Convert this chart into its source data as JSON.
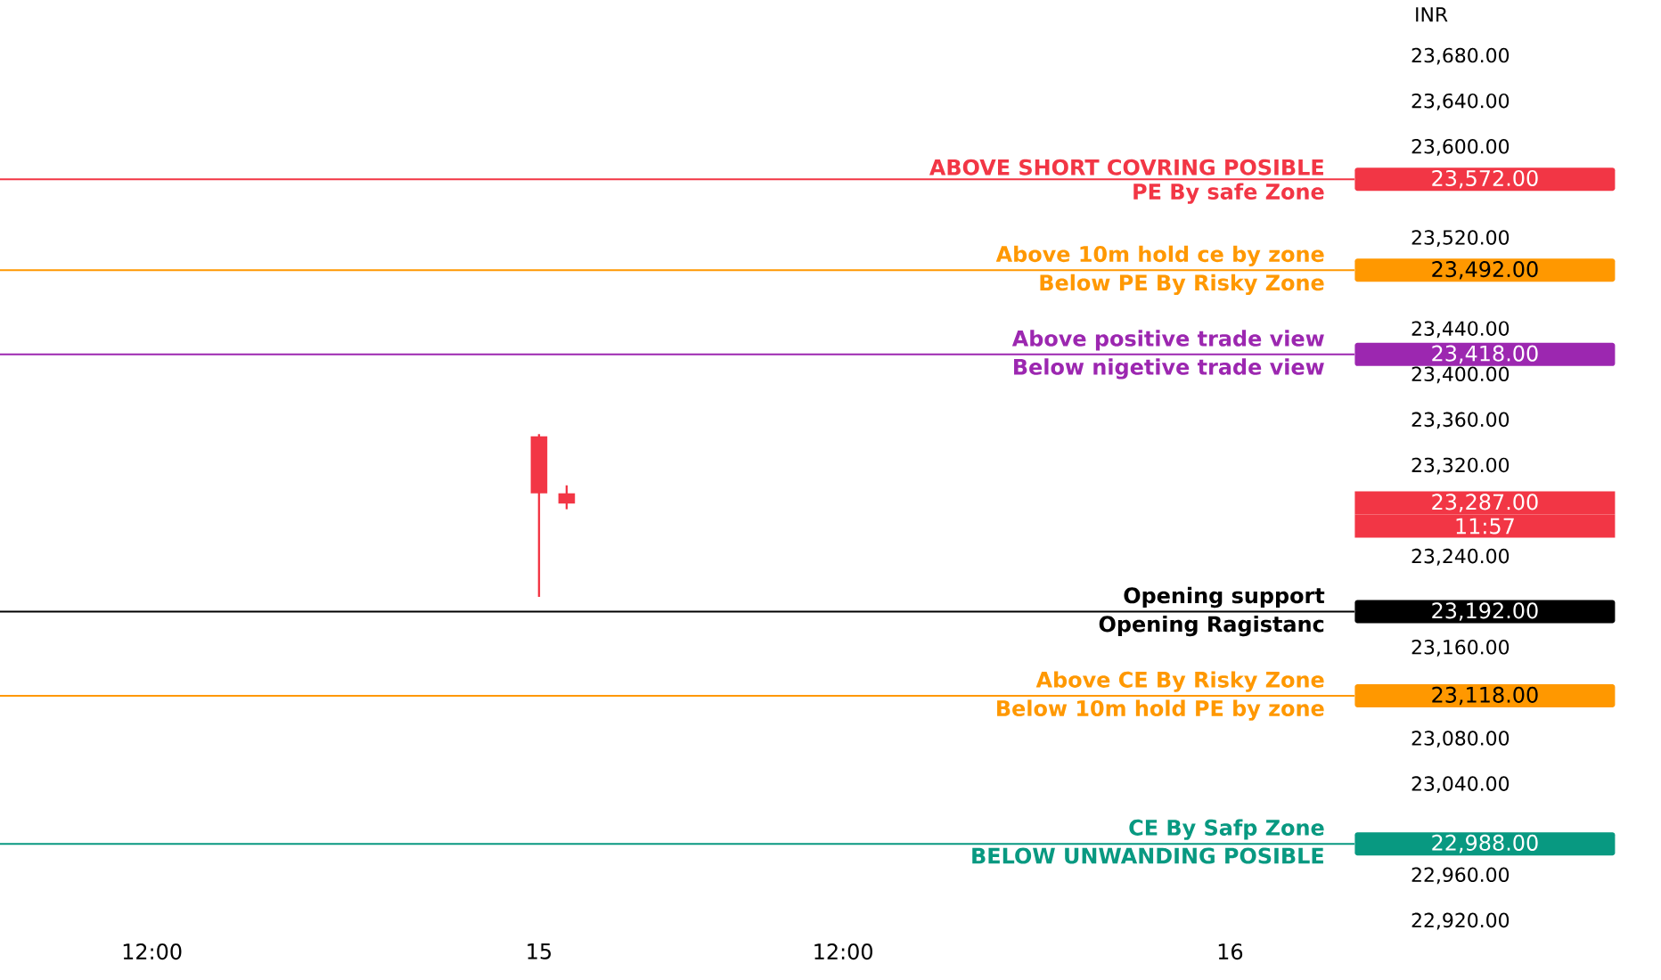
{
  "chart_data": {
    "type": "candlestick",
    "ylabel": "INR",
    "categories": [
      null,
      null,
      null,
      null,
      null,
      "12:00",
      null,
      null,
      null,
      null,
      null,
      null,
      null,
      null,
      null,
      null,
      null,
      null,
      null,
      "15",
      null,
      null,
      null,
      null,
      null,
      null,
      null,
      null,
      null,
      null,
      "12:00",
      null,
      null,
      null,
      null,
      null,
      null,
      null,
      null,
      null,
      null,
      null,
      null,
      null,
      "16",
      null,
      null,
      null,
      null
    ],
    "ohlc": [
      null,
      null,
      null,
      null,
      null,
      null,
      null,
      null,
      null,
      null,
      null,
      null,
      null,
      null,
      null,
      null,
      null,
      null,
      null,
      [
        23346,
        23348,
        23205,
        23296
      ],
      [
        23296,
        23303,
        23282,
        23287
      ],
      null,
      null,
      null,
      null,
      null,
      null,
      null,
      null,
      null,
      null,
      null,
      null,
      null,
      null,
      null,
      null,
      null,
      null,
      null,
      null,
      null,
      null,
      null,
      null,
      null,
      null,
      null,
      null
    ],
    "color": "#f23645",
    "ylim": [
      22920,
      23680
    ],
    "yticks": [
      {
        "value": 22920,
        "label": "22,920.00"
      },
      {
        "value": 22960,
        "label": "22,960.00"
      },
      {
        "value": 23040,
        "label": "23,040.00"
      },
      {
        "value": 23080,
        "label": "23,080.00"
      },
      {
        "value": 23160,
        "label": "23,160.00"
      },
      {
        "value": 23240,
        "label": "23,240.00"
      },
      {
        "value": 23320,
        "label": "23,320.00"
      },
      {
        "value": 23360,
        "label": "23,360.00"
      },
      {
        "value": 23400,
        "label": "23,400.00"
      },
      {
        "value": 23440,
        "label": "23,440.00"
      },
      {
        "value": 23520,
        "label": "23,520.00"
      },
      {
        "value": 23600,
        "label": "23,600.00"
      },
      {
        "value": 23640,
        "label": "23,640.00"
      },
      {
        "value": 23680,
        "label": "23,680.00"
      }
    ],
    "grid": false,
    "ref_lines": [
      {
        "axis": "y",
        "value": 23572,
        "label": "ABOVE SHORT COVRING POSIBLE",
        "color": "#f23645"
      },
      {
        "axis": "y",
        "value": 23492,
        "label": "Above 10m hold ce by zone",
        "color": "#ff9800"
      },
      {
        "axis": "y",
        "value": 23418,
        "label": "Above positive trade view",
        "color": "#9c27b0"
      },
      {
        "axis": "y",
        "value": 23192,
        "label": "Opening support",
        "color": "#000000"
      },
      {
        "axis": "y",
        "value": 23118,
        "label": "Above CE By Risky Zone",
        "color": "#ff9800"
      },
      {
        "axis": "y",
        "value": 22988,
        "label": "CE By Safp Zone",
        "color": "#089981"
      }
    ],
    "annotations": [
      {
        "text": "PE By safe Zone",
        "y": 23572
      },
      {
        "text": "Below PE By Risky Zone",
        "y": 23492
      },
      {
        "text": "Below nigetive trade view",
        "y": 23418
      },
      {
        "text": "Opening Ragistanc",
        "y": 23192
      },
      {
        "text": "Below 10m hold PE by zone",
        "y": 23118
      },
      {
        "text": "BELOW UNWANDING POSIBLE",
        "y": 22988
      },
      "23,572.00",
      "23,492.00",
      "23,418.00",
      "23,192.00",
      "23,118.00",
      "22,988.00",
      "23,287.00",
      "11:57"
    ]
  }
}
